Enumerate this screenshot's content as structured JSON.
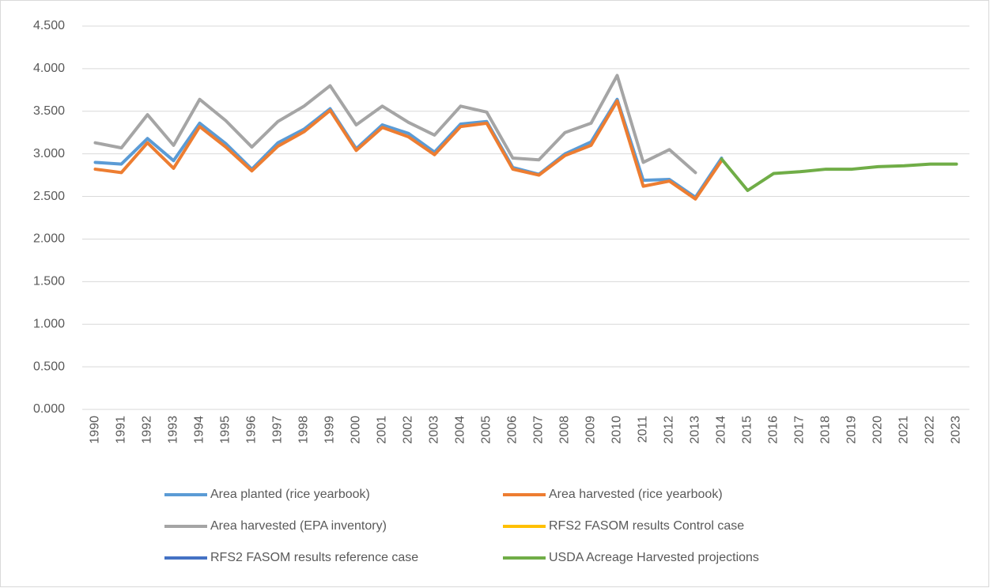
{
  "chart_data": {
    "type": "line",
    "categories": [
      "1990",
      "1991",
      "1992",
      "1993",
      "1994",
      "1995",
      "1996",
      "1997",
      "1998",
      "1999",
      "2000",
      "2001",
      "2002",
      "2003",
      "2004",
      "2005",
      "2006",
      "2007",
      "2008",
      "2009",
      "2010",
      "2011",
      "2012",
      "2013",
      "2014",
      "2015",
      "2016",
      "2017",
      "2018",
      "2019",
      "2020",
      "2021",
      "2022",
      "2023"
    ],
    "series": [
      {
        "name": "Area planted (rice yearbook)",
        "color": "#5b9bd5",
        "values": [
          2.9,
          2.88,
          3.18,
          2.92,
          3.36,
          3.12,
          2.82,
          3.13,
          3.29,
          3.53,
          3.06,
          3.34,
          3.24,
          3.02,
          3.35,
          3.38,
          2.84,
          2.76,
          3.0,
          3.14,
          3.64,
          2.69,
          2.7,
          2.49,
          2.95,
          null,
          null,
          null,
          null,
          null,
          null,
          null,
          null,
          null
        ]
      },
      {
        "name": "Area harvested (rice yearbook)",
        "color": "#ed7d31",
        "values": [
          2.82,
          2.78,
          3.13,
          2.83,
          3.32,
          3.08,
          2.8,
          3.09,
          3.26,
          3.51,
          3.04,
          3.31,
          3.2,
          2.99,
          3.32,
          3.36,
          2.82,
          2.75,
          2.98,
          3.1,
          3.62,
          2.62,
          2.68,
          2.47,
          2.92,
          null,
          null,
          null,
          null,
          null,
          null,
          null,
          null,
          null
        ]
      },
      {
        "name": "Area harvested (EPA inventory)",
        "color": "#a5a5a5",
        "values": [
          3.13,
          3.07,
          3.46,
          3.1,
          3.64,
          3.39,
          3.08,
          3.38,
          3.56,
          3.8,
          3.34,
          3.56,
          3.37,
          3.22,
          3.56,
          3.49,
          2.95,
          2.93,
          3.25,
          3.36,
          3.92,
          2.9,
          3.05,
          2.78,
          null,
          null,
          null,
          null,
          null,
          null,
          null,
          null,
          null,
          null
        ]
      },
      {
        "name": "RFS2 FASOM results Control case",
        "color": "#ffc000",
        "values": [
          null,
          null,
          null,
          null,
          null,
          null,
          null,
          null,
          null,
          null,
          null,
          null,
          null,
          null,
          null,
          null,
          null,
          null,
          null,
          null,
          null,
          null,
          null,
          null,
          null,
          null,
          null,
          null,
          null,
          null,
          null,
          null,
          null,
          null
        ]
      },
      {
        "name": "RFS2 FASOM results reference case",
        "color": "#4472c4",
        "values": [
          null,
          null,
          null,
          null,
          null,
          null,
          null,
          null,
          null,
          null,
          null,
          null,
          null,
          null,
          null,
          null,
          null,
          null,
          null,
          null,
          null,
          null,
          null,
          null,
          null,
          null,
          null,
          null,
          null,
          null,
          null,
          null,
          null,
          null
        ]
      },
      {
        "name": "USDA Acreage Harvested projections",
        "color": "#70ad47",
        "values": [
          null,
          null,
          null,
          null,
          null,
          null,
          null,
          null,
          null,
          null,
          null,
          null,
          null,
          null,
          null,
          null,
          null,
          null,
          null,
          null,
          null,
          null,
          null,
          null,
          2.94,
          2.57,
          2.77,
          2.79,
          2.82,
          2.82,
          2.85,
          2.86,
          2.88,
          2.88
        ]
      }
    ],
    "ylim": [
      0,
      4.5
    ],
    "yticks": [
      {
        "value": 0,
        "label": "0.000"
      },
      {
        "value": 0.5,
        "label": "0.500"
      },
      {
        "value": 1,
        "label": "1.000"
      },
      {
        "value": 1.5,
        "label": "1.500"
      },
      {
        "value": 2,
        "label": "2.000"
      },
      {
        "value": 2.5,
        "label": "2.500"
      },
      {
        "value": 3,
        "label": "3.000"
      },
      {
        "value": 3.5,
        "label": "3.500"
      },
      {
        "value": 4,
        "label": "4.000"
      },
      {
        "value": 4.5,
        "label": "4.500"
      }
    ],
    "grid": true
  }
}
